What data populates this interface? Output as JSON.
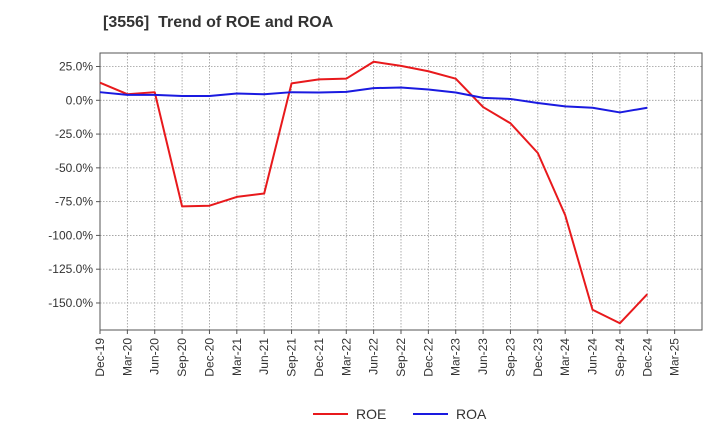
{
  "chart_data": {
    "type": "line",
    "title": "[3556]  Trend of ROE and ROA",
    "xlabel": "",
    "ylabel": "",
    "x_ticks": [
      "Dec-19",
      "Mar-20",
      "Jun-20",
      "Sep-20",
      "Dec-20",
      "Mar-21",
      "Jun-21",
      "Sep-21",
      "Dec-21",
      "Mar-22",
      "Jun-22",
      "Sep-22",
      "Dec-22",
      "Mar-23",
      "Jun-23",
      "Sep-23",
      "Dec-23",
      "Mar-24",
      "Jun-24",
      "Sep-24",
      "Dec-24",
      "Mar-25"
    ],
    "y_ticks": [
      25,
      0,
      -25,
      -50,
      -75,
      -100,
      -125,
      -150
    ],
    "y_tick_labels": [
      "25.0%",
      "0.0%",
      "-25.0%",
      "-50.0%",
      "-75.0%",
      "-100.0%",
      "-125.0%",
      "-150.0%"
    ],
    "ylim": [
      -170,
      35
    ],
    "grid": true,
    "legend_position": "bottom-center",
    "series": [
      {
        "name": "ROE",
        "color": "#e8191c",
        "points": [
          [
            "Dec-19",
            13
          ],
          [
            "Mar-20",
            4.5
          ],
          [
            "Jun-20",
            6
          ],
          [
            "Sep-20",
            -78.5
          ],
          [
            "Dec-20",
            -78
          ],
          [
            "Mar-21",
            -71.5
          ],
          [
            "Jun-21",
            -69
          ],
          [
            "Sep-21",
            12.5
          ],
          [
            "Dec-21",
            15.5
          ],
          [
            "Mar-22",
            16
          ],
          [
            "Jun-22",
            28.5
          ],
          [
            "Sep-22",
            25.5
          ],
          [
            "Dec-22",
            21.5
          ],
          [
            "Mar-23",
            16
          ],
          [
            "Jun-23",
            -5
          ],
          [
            "Sep-23",
            -17
          ],
          [
            "Dec-23",
            -39
          ],
          [
            "Mar-24",
            -85
          ],
          [
            "Jun-24",
            -155
          ],
          [
            "Sep-24",
            -165
          ],
          [
            "Dec-24",
            -143.5
          ]
        ]
      },
      {
        "name": "ROA",
        "color": "#1a1ae0",
        "points": [
          [
            "Dec-19",
            6
          ],
          [
            "Mar-20",
            4
          ],
          [
            "Jun-20",
            4
          ],
          [
            "Sep-20",
            3.2
          ],
          [
            "Dec-20",
            3.2
          ],
          [
            "Mar-21",
            5
          ],
          [
            "Jun-21",
            4.5
          ],
          [
            "Sep-21",
            6
          ],
          [
            "Dec-21",
            5.8
          ],
          [
            "Mar-22",
            6.2
          ],
          [
            "Jun-22",
            9
          ],
          [
            "Sep-22",
            9.5
          ],
          [
            "Dec-22",
            8
          ],
          [
            "Mar-23",
            5.8
          ],
          [
            "Jun-23",
            1.8
          ],
          [
            "Sep-23",
            1
          ],
          [
            "Dec-23",
            -2
          ],
          [
            "Mar-24",
            -4.5
          ],
          [
            "Jun-24",
            -5.5
          ],
          [
            "Sep-24",
            -9
          ],
          [
            "Dec-24",
            -5.5
          ]
        ]
      }
    ]
  }
}
